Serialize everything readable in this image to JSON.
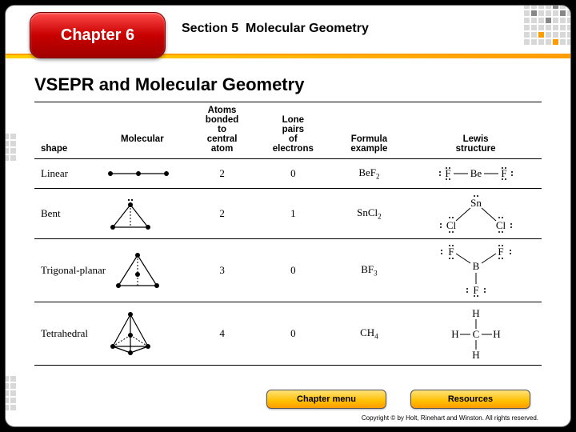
{
  "header": {
    "chapter_label": "Chapter 6",
    "section_label": "Section 5",
    "section_title": "Molecular Geometry"
  },
  "main_heading": "VSEPR and Molecular Geometry",
  "table": {
    "columns": [
      "Molecular shape",
      "Atoms bonded to central atom",
      "Lone pairs of electrons",
      "Formula example",
      "Lewis structure"
    ],
    "column_widths_pct": [
      30,
      14,
      14,
      16,
      26
    ],
    "header_fontsize_pt": 9,
    "body_fontfamily": "Times New Roman",
    "border_color": "#000000",
    "rows": [
      {
        "shape_name": "Linear",
        "shape_key": "linear",
        "bonded": "2",
        "lone": "0",
        "formula_html": "BeF<sub>2</sub>",
        "lewis_key": "bef2"
      },
      {
        "shape_name": "Bent",
        "shape_key": "bent",
        "bonded": "2",
        "lone": "1",
        "formula_html": "SnCl<sub>2</sub>",
        "lewis_key": "sncl2"
      },
      {
        "shape_name": "Trigonal-planar",
        "shape_key": "trigonal",
        "bonded": "3",
        "lone": "0",
        "formula_html": "BF<sub>3</sub>",
        "lewis_key": "bf3"
      },
      {
        "shape_name": "Tetrahedral",
        "shape_key": "tetrahedral",
        "bonded": "4",
        "lone": "0",
        "formula_html": "CH<sub>4</sub>",
        "lewis_key": "ch4"
      }
    ]
  },
  "buttons": {
    "chapter_menu": "Chapter menu",
    "resources": "Resources"
  },
  "footer": {
    "copyright": "Copyright © by Holt, Rinehart and Winston. All rights reserved."
  },
  "style": {
    "slide_bg": "#ffffff",
    "outer_bg": "#000000",
    "accent_yellow": "#ffbf00",
    "accent_orange": "#ff9c00",
    "chapter_tab_gradient": [
      "#ff4a4a",
      "#c80000",
      "#a00000"
    ],
    "button_gradient": [
      "#ffe27a",
      "#ffbf00",
      "#ff9c00"
    ],
    "deco_square_colors": {
      "light": "#d8d8d8",
      "orange": "#ff9c00",
      "gray": "#888888"
    },
    "heading_fontsize_pt": 17,
    "section_fontsize_pt": 12
  }
}
